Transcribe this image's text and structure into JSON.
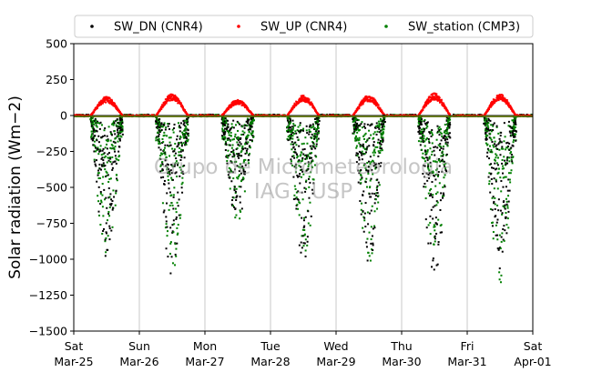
{
  "chart_data": {
    "type": "scatter",
    "ylabel": "Solar radiation (Wm−2)",
    "ylim": [
      -1500,
      500
    ],
    "yticks": [
      -1500,
      -1250,
      -1000,
      -750,
      -500,
      -250,
      0,
      250,
      500
    ],
    "xlim_days": [
      0,
      7
    ],
    "xticks": [
      {
        "day": "Sat",
        "date": "Mar-25"
      },
      {
        "day": "Sun",
        "date": "Mar-26"
      },
      {
        "day": "Mon",
        "date": "Mar-27"
      },
      {
        "day": "Tue",
        "date": "Mar-28"
      },
      {
        "day": "Wed",
        "date": "Mar-29"
      },
      {
        "day": "Thu",
        "date": "Mar-30"
      },
      {
        "day": "Fri",
        "date": "Mar-31"
      },
      {
        "day": "Sat",
        "date": "Apr-01"
      }
    ],
    "grid": "vertical",
    "legend_position": "top",
    "watermark": [
      "Grupo de Micrometeorologia",
      "IAG - USP"
    ],
    "series": [
      {
        "name": "SW_DN (CNR4)",
        "color": "#000000",
        "daily_min": [
          -990,
          -1140,
          -760,
          -1040,
          -1020,
          -1140,
          -1080
        ]
      },
      {
        "name": "SW_UP (CNR4)",
        "color": "#ff0000",
        "daily_max": [
          130,
          150,
          110,
          140,
          140,
          155,
          150
        ]
      },
      {
        "name": "SW_station (CMP3)",
        "color": "#008000",
        "daily_min": [
          -1010,
          -1120,
          -740,
          -1000,
          -1030,
          -1000,
          -1190
        ]
      }
    ]
  }
}
